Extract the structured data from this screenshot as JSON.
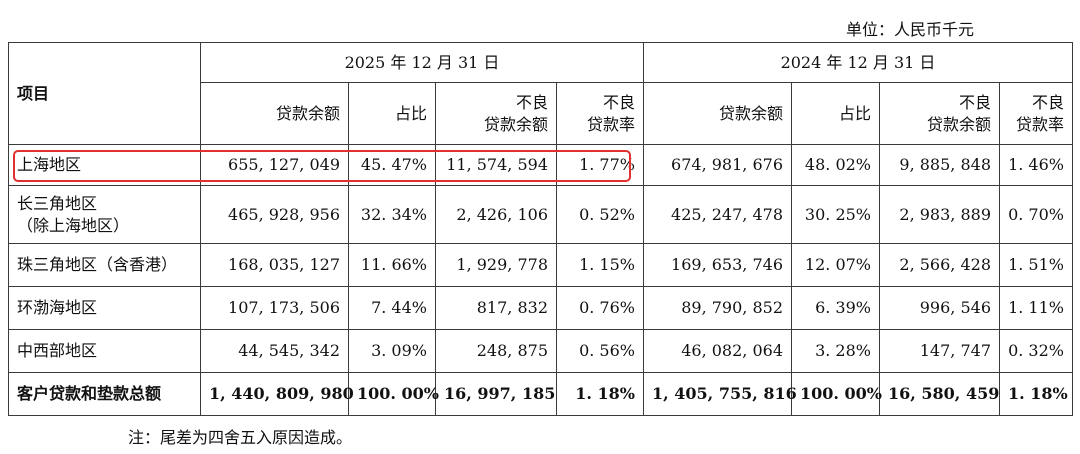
{
  "unit_label": "单位：人民币千元",
  "header": {
    "item": "项目",
    "year_2025": "2025 年 12 月 31 日",
    "year_2024": "2024 年 12 月 31 日",
    "col_loan_balance": "贷款余额",
    "col_share": "占比",
    "col_npl_balance_line1": "不良",
    "col_npl_balance_line2": "贷款余额",
    "col_npl_ratio_line1": "不良",
    "col_npl_ratio_line2": "贷款率"
  },
  "rows": [
    {
      "region_line1": "上海地区",
      "region_line2": "",
      "y2025": {
        "loan": "655, 127, 049",
        "share": "45. 47%",
        "npl": "11, 574, 594",
        "ratio": "1. 77%"
      },
      "y2024": {
        "loan": "674, 981, 676",
        "share": "48. 02%",
        "npl": "9, 885, 848",
        "ratio": "1. 46%"
      }
    },
    {
      "region_line1": "长三角地区",
      "region_line2": "（除上海地区）",
      "y2025": {
        "loan": "465, 928, 956",
        "share": "32. 34%",
        "npl": "2, 426, 106",
        "ratio": "0. 52%"
      },
      "y2024": {
        "loan": "425, 247, 478",
        "share": "30. 25%",
        "npl": "2, 983, 889",
        "ratio": "0. 70%"
      }
    },
    {
      "region_line1": "珠三角地区（含香港）",
      "region_line2": "",
      "y2025": {
        "loan": "168, 035, 127",
        "share": "11. 66%",
        "npl": "1, 929, 778",
        "ratio": "1. 15%"
      },
      "y2024": {
        "loan": "169, 653, 746",
        "share": "12. 07%",
        "npl": "2, 566, 428",
        "ratio": "1. 51%"
      }
    },
    {
      "region_line1": "环渤海地区",
      "region_line2": "",
      "y2025": {
        "loan": "107, 173, 506",
        "share": "7. 44%",
        "npl": "817, 832",
        "ratio": "0. 76%"
      },
      "y2024": {
        "loan": "89, 790, 852",
        "share": "6. 39%",
        "npl": "996, 546",
        "ratio": "1. 11%"
      }
    },
    {
      "region_line1": "中西部地区",
      "region_line2": "",
      "y2025": {
        "loan": "44, 545, 342",
        "share": "3. 09%",
        "npl": "248, 875",
        "ratio": "0. 56%"
      },
      "y2024": {
        "loan": "46, 082, 064",
        "share": "3. 28%",
        "npl": "147, 747",
        "ratio": "0. 32%"
      }
    },
    {
      "region_line1": "客户贷款和垫款总额",
      "region_line2": "",
      "y2025": {
        "loan": "1, 440, 809, 980",
        "share": "100. 00%",
        "npl": "16, 997, 185",
        "ratio": "1. 18%"
      },
      "y2024": {
        "loan": "1, 405, 755, 816",
        "share": "100. 00%",
        "npl": "16, 580, 459",
        "ratio": "1. 18%"
      }
    }
  ],
  "highlight": {
    "color": "#e03030",
    "row": "上海地区",
    "years": "2025"
  },
  "note": "注：尾差为四舍五入原因造成。"
}
